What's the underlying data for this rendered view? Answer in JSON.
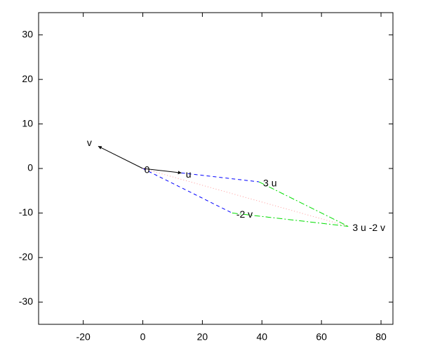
{
  "chart_data": {
    "type": "vector",
    "xlim": [
      -35,
      84
    ],
    "ylim": [
      -35,
      35
    ],
    "xticks": [
      -20,
      0,
      20,
      40,
      60,
      80
    ],
    "yticks": [
      -30,
      -20,
      -10,
      0,
      10,
      20,
      30
    ],
    "points": [
      {
        "label": "0",
        "x": 0,
        "y": 0
      },
      {
        "label": "u",
        "x": 13,
        "y": -1
      },
      {
        "label": "v",
        "x": -15,
        "y": 5
      },
      {
        "label": "3 u",
        "x": 39,
        "y": -3
      },
      {
        "label": "-2 v",
        "x": 30,
        "y": -10
      },
      {
        "label": "3 u -2 v",
        "x": 69,
        "y": -13
      }
    ],
    "segments": [
      {
        "from": [
          0,
          0
        ],
        "to": [
          13,
          -1
        ],
        "color": "#000000",
        "style": "arrow"
      },
      {
        "from": [
          0,
          0
        ],
        "to": [
          -15,
          5
        ],
        "color": "#000000",
        "style": "arrow"
      },
      {
        "from": [
          13,
          -1
        ],
        "to": [
          39,
          -3
        ],
        "color": "#0000ff",
        "style": "dashed"
      },
      {
        "from": [
          0,
          0
        ],
        "to": [
          30,
          -10
        ],
        "color": "#0000ff",
        "style": "dashed"
      },
      {
        "from": [
          39,
          -3
        ],
        "to": [
          69,
          -13
        ],
        "color": "#00dd00",
        "style": "dashdot"
      },
      {
        "from": [
          30,
          -10
        ],
        "to": [
          69,
          -13
        ],
        "color": "#00dd00",
        "style": "dashdot"
      },
      {
        "from": [
          0,
          0
        ],
        "to": [
          69,
          -13
        ],
        "color": "#ff9999",
        "style": "dotted"
      }
    ]
  }
}
